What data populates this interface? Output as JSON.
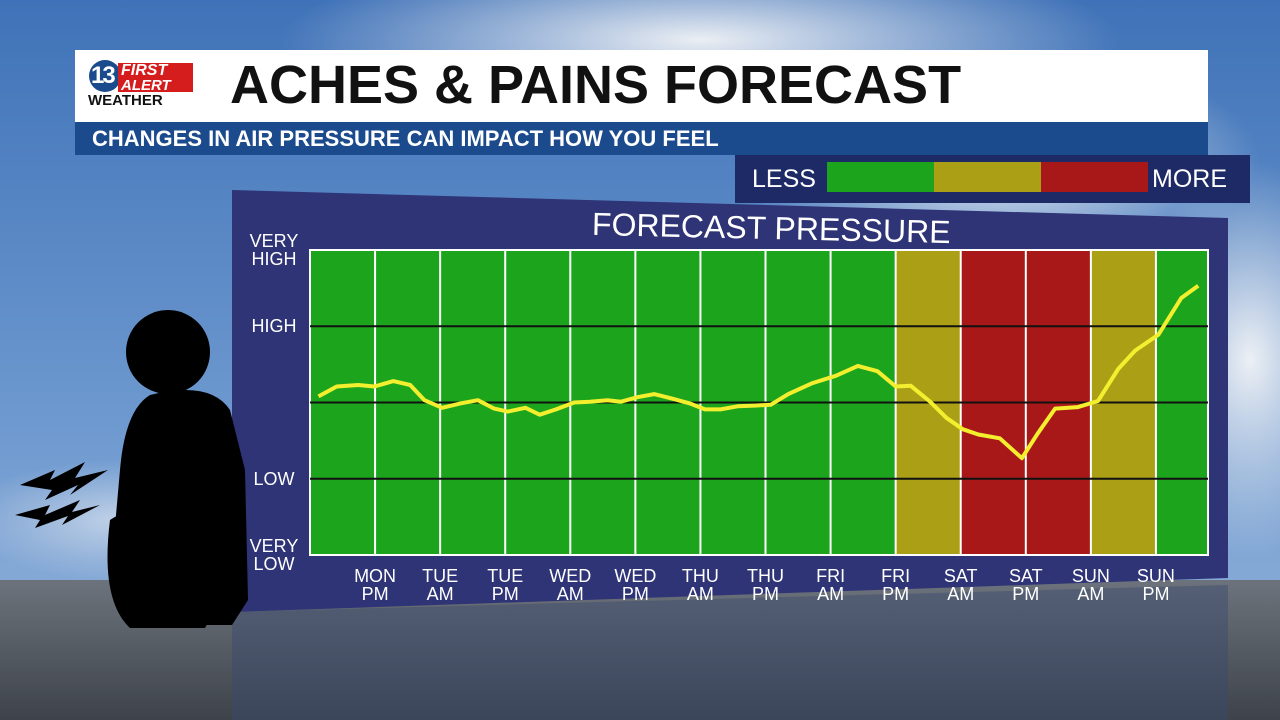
{
  "logo": {
    "number": "13",
    "line1": "FIRST",
    "line2": "ALERT",
    "line3": "WEATHER"
  },
  "header": {
    "title": "ACHES & PAINS FORECAST",
    "subtitle": "CHANGES IN AIR PRESSURE CAN IMPACT HOW YOU FEEL"
  },
  "scale_legend": {
    "low_label": "LESS",
    "high_label": "MORE",
    "colors": [
      "#1ca51c",
      "#ab9f16",
      "#a81818"
    ]
  },
  "chart_data": {
    "type": "line",
    "title": "FORECAST PRESSURE",
    "color": "#f4ef2e",
    "x": [
      0.13,
      0.41,
      0.74,
      0.99,
      1.28,
      1.54,
      1.76,
      2.03,
      2.32,
      2.58,
      2.83,
      3.04,
      3.31,
      3.53,
      3.78,
      4.06,
      4.3,
      4.57,
      4.78,
      5.03,
      5.29,
      5.57,
      5.83,
      6.07,
      6.31,
      6.57,
      6.83,
      7.08,
      7.35,
      7.71,
      8.08,
      8.42,
      8.72,
      9.0,
      9.23,
      9.53,
      9.78,
      10.03,
      10.27,
      10.6,
      10.94,
      11.18,
      11.45,
      11.8,
      12.11,
      12.42,
      12.68,
      13.04,
      13.39,
      13.65
    ],
    "values": [
      2.08,
      2.21,
      2.23,
      2.21,
      2.28,
      2.23,
      2.03,
      1.93,
      1.99,
      2.03,
      1.92,
      1.88,
      1.93,
      1.84,
      1.91,
      2.0,
      2.01,
      2.03,
      2.01,
      2.07,
      2.11,
      2.05,
      1.99,
      1.91,
      1.91,
      1.95,
      1.96,
      1.97,
      2.11,
      2.25,
      2.35,
      2.48,
      2.41,
      2.21,
      2.22,
      2.01,
      1.8,
      1.65,
      1.58,
      1.53,
      1.27,
      1.59,
      1.92,
      1.94,
      2.02,
      2.44,
      2.68,
      2.89,
      3.37,
      3.53
    ],
    "xlim": [
      0,
      13.8
    ],
    "xticks": [
      {
        "value": 1,
        "label": "MON\nPM"
      },
      {
        "value": 2,
        "label": "TUE\nAM"
      },
      {
        "value": 3,
        "label": "TUE\nPM"
      },
      {
        "value": 4,
        "label": "WED\nAM"
      },
      {
        "value": 5,
        "label": "WED\nPM"
      },
      {
        "value": 6,
        "label": "THU\nAM"
      },
      {
        "value": 7,
        "label": "THU\nPM"
      },
      {
        "value": 8,
        "label": "FRI\nAM"
      },
      {
        "value": 9,
        "label": "FRI\nPM"
      },
      {
        "value": 10,
        "label": "SAT\nAM"
      },
      {
        "value": 11,
        "label": "SAT\nPM"
      },
      {
        "value": 12,
        "label": "SUN\nAM"
      },
      {
        "value": 13,
        "label": "SUN\nPM"
      }
    ],
    "ylim": [
      0,
      4
    ],
    "yticks": [
      {
        "value": 0,
        "label": "VERY\nLOW"
      },
      {
        "value": 1,
        "label": "LOW"
      },
      {
        "value": 3,
        "label": "HIGH"
      },
      {
        "value": 4,
        "label": "VERY\nHIGH"
      }
    ],
    "midline": 2,
    "bands": [
      {
        "start": 0,
        "end": 9,
        "color": "#1ca51c"
      },
      {
        "start": 9,
        "end": 10,
        "color": "#ab9f16"
      },
      {
        "start": 10,
        "end": 12,
        "color": "#a81818"
      },
      {
        "start": 12,
        "end": 13,
        "color": "#ab9f16"
      },
      {
        "start": 13,
        "end": 13.8,
        "color": "#1ca51c"
      }
    ]
  }
}
